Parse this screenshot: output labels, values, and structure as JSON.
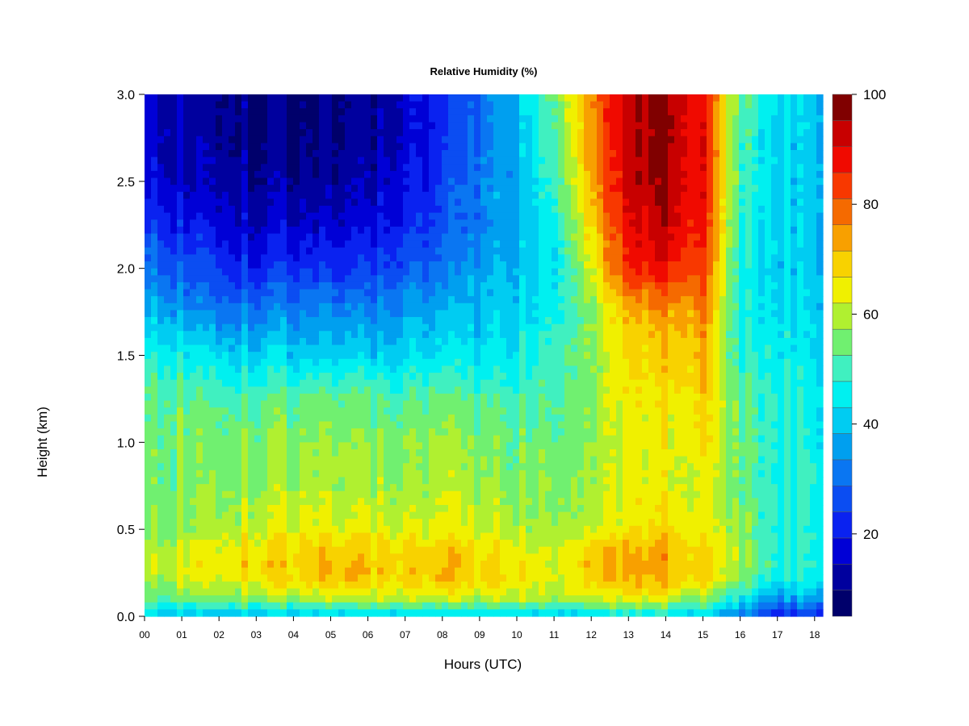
{
  "chart_data": {
    "type": "heatmap",
    "title": "Relative Humidity (%)",
    "xlabel": "Hours (UTC)",
    "ylabel": "Height (km)",
    "xlim": [
      0,
      18.3
    ],
    "ylim": [
      0,
      3.0
    ],
    "x_ticks": [
      "00",
      "01",
      "02",
      "03",
      "04",
      "05",
      "06",
      "07",
      "08",
      "09",
      "10",
      "11",
      "12",
      "13",
      "14",
      "15",
      "16",
      "17",
      "18"
    ],
    "y_ticks": [
      "0.0",
      "0.5",
      "1.0",
      "1.5",
      "2.0",
      "2.5",
      "3.0"
    ],
    "colorbar": {
      "min": 5,
      "max": 100,
      "ticks": [
        "20",
        "40",
        "60",
        "80",
        "100"
      ],
      "colors": [
        "#00006b",
        "#00009e",
        "#0000d6",
        "#0a22f0",
        "#0b4df2",
        "#0a76f2",
        "#009fef",
        "#00ccf2",
        "#00f0f0",
        "#40f0c0",
        "#70f070",
        "#b0f030",
        "#f0f000",
        "#f8d200",
        "#f8a000",
        "#f56a00",
        "#f83800",
        "#f00a00",
        "#c80000",
        "#800000"
      ]
    },
    "x": [
      0,
      1,
      2,
      3,
      4,
      5,
      6,
      7,
      8,
      9,
      10,
      11,
      12,
      13,
      14,
      15,
      16,
      17,
      18.2
    ],
    "y": [
      0.0,
      0.1,
      0.2,
      0.3,
      0.4,
      0.5,
      0.75,
      1.0,
      1.25,
      1.5,
      1.75,
      2.0,
      2.25,
      2.5,
      2.75,
      3.0
    ],
    "z": [
      [
        40,
        40,
        38,
        38,
        40,
        42,
        42,
        42,
        42,
        42,
        42,
        42,
        42,
        44,
        45,
        40,
        30,
        20,
        22
      ],
      [
        52,
        55,
        56,
        58,
        58,
        60,
        60,
        60,
        60,
        60,
        60,
        60,
        62,
        62,
        62,
        56,
        45,
        35,
        38
      ],
      [
        58,
        62,
        64,
        66,
        68,
        70,
        70,
        68,
        70,
        68,
        66,
        64,
        70,
        70,
        72,
        66,
        55,
        46,
        46
      ],
      [
        60,
        64,
        66,
        68,
        70,
        72,
        72,
        68,
        72,
        68,
        66,
        64,
        72,
        72,
        74,
        68,
        58,
        48,
        48
      ],
      [
        58,
        62,
        64,
        66,
        68,
        70,
        70,
        66,
        70,
        66,
        64,
        62,
        70,
        70,
        72,
        68,
        58,
        48,
        48
      ],
      [
        56,
        58,
        60,
        62,
        64,
        64,
        64,
        62,
        64,
        62,
        60,
        60,
        62,
        64,
        68,
        64,
        56,
        48,
        48
      ],
      [
        54,
        56,
        58,
        58,
        60,
        60,
        60,
        58,
        60,
        58,
        56,
        58,
        60,
        62,
        64,
        62,
        54,
        48,
        48
      ],
      [
        54,
        56,
        56,
        56,
        58,
        58,
        58,
        56,
        58,
        56,
        54,
        56,
        58,
        62,
        64,
        66,
        54,
        48,
        46
      ],
      [
        52,
        54,
        52,
        52,
        54,
        54,
        54,
        52,
        54,
        52,
        50,
        54,
        58,
        64,
        66,
        68,
        52,
        48,
        46
      ],
      [
        48,
        46,
        44,
        42,
        42,
        42,
        42,
        42,
        44,
        44,
        46,
        52,
        58,
        66,
        70,
        72,
        48,
        46,
        44
      ],
      [
        38,
        36,
        32,
        32,
        34,
        34,
        34,
        36,
        38,
        40,
        42,
        48,
        58,
        70,
        74,
        76,
        46,
        44,
        42
      ],
      [
        30,
        28,
        24,
        22,
        24,
        24,
        24,
        28,
        30,
        36,
        40,
        46,
        64,
        84,
        88,
        82,
        46,
        42,
        40
      ],
      [
        24,
        22,
        18,
        16,
        16,
        16,
        18,
        22,
        26,
        32,
        38,
        48,
        70,
        88,
        94,
        86,
        48,
        42,
        40
      ],
      [
        18,
        16,
        14,
        12,
        12,
        12,
        14,
        18,
        24,
        32,
        38,
        52,
        74,
        92,
        96,
        88,
        50,
        42,
        40
      ],
      [
        16,
        14,
        12,
        10,
        10,
        10,
        12,
        16,
        22,
        30,
        38,
        54,
        76,
        92,
        98,
        88,
        50,
        42,
        40
      ],
      [
        16,
        14,
        12,
        10,
        10,
        10,
        12,
        16,
        22,
        30,
        38,
        56,
        78,
        92,
        98,
        88,
        52,
        44,
        40
      ]
    ]
  }
}
